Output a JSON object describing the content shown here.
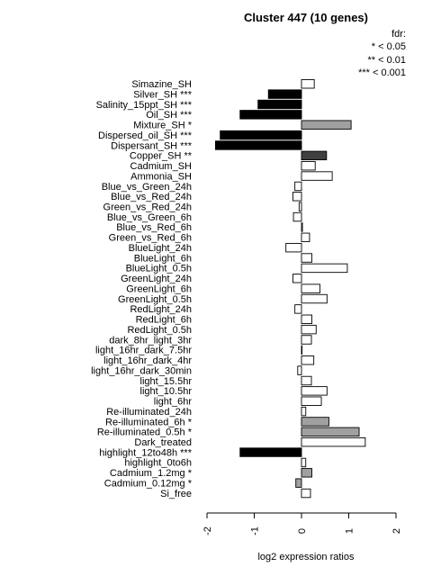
{
  "chart_data": {
    "type": "bar",
    "orientation": "horizontal",
    "title": "Cluster 447 (10 genes)",
    "xlabel": "log2 expression ratios",
    "ylabel": "",
    "xlim": [
      -2,
      2
    ],
    "xticks": [
      -2,
      -1,
      0,
      1,
      2
    ],
    "xtick_labels": [
      "-2",
      "-1",
      "0",
      "1",
      "2"
    ],
    "legend_entries": [
      "fdr:",
      "* < 0.05",
      "** < 0.01",
      "*** < 0.001"
    ],
    "colors": {
      "p001": "#000000",
      "p01": "#404040",
      "p05": "#a0a0a0",
      "ns": "#ffffff",
      "stroke": "#000000"
    },
    "bars": [
      {
        "label": "Simazine_SH",
        "value": 0.27,
        "sig": ""
      },
      {
        "label": "Silver_SH ***",
        "value": -0.7,
        "sig": "***"
      },
      {
        "label": "Salinity_15ppt_SH ***",
        "value": -0.92,
        "sig": "***"
      },
      {
        "label": "Oil_SH ***",
        "value": -1.3,
        "sig": "***"
      },
      {
        "label": "Mixture_SH *",
        "value": 1.05,
        "sig": "*"
      },
      {
        "label": "Dispersed_oil_SH ***",
        "value": -1.72,
        "sig": "***"
      },
      {
        "label": "Dispersant_SH ***",
        "value": -1.82,
        "sig": "***"
      },
      {
        "label": "Copper_SH **",
        "value": 0.53,
        "sig": "**"
      },
      {
        "label": "Cadmium_SH",
        "value": 0.29,
        "sig": ""
      },
      {
        "label": "Ammonia_SH",
        "value": 0.65,
        "sig": ""
      },
      {
        "label": "Blue_vs_Green_24h",
        "value": -0.14,
        "sig": ""
      },
      {
        "label": "Blue_vs_Red_24h",
        "value": -0.18,
        "sig": ""
      },
      {
        "label": "Green_vs_Red_24h",
        "value": -0.05,
        "sig": ""
      },
      {
        "label": "Blue_vs_Green_6h",
        "value": -0.17,
        "sig": ""
      },
      {
        "label": "Blue_vs_Red_6h",
        "value": 0.02,
        "sig": ""
      },
      {
        "label": "Green_vs_Red_6h",
        "value": 0.17,
        "sig": ""
      },
      {
        "label": "BlueLight_24h",
        "value": -0.33,
        "sig": ""
      },
      {
        "label": "BlueLight_6h",
        "value": 0.22,
        "sig": ""
      },
      {
        "label": "BlueLight_0.5h",
        "value": 0.97,
        "sig": ""
      },
      {
        "label": "GreenLight_24h",
        "value": -0.18,
        "sig": ""
      },
      {
        "label": "GreenLight_6h",
        "value": 0.39,
        "sig": ""
      },
      {
        "label": "GreenLight_0.5h",
        "value": 0.54,
        "sig": ""
      },
      {
        "label": "RedLight_24h",
        "value": -0.14,
        "sig": ""
      },
      {
        "label": "RedLight_6h",
        "value": 0.22,
        "sig": ""
      },
      {
        "label": "RedLight_0.5h",
        "value": 0.31,
        "sig": ""
      },
      {
        "label": "dark_8hr_light_3hr",
        "value": 0.21,
        "sig": ""
      },
      {
        "label": "light_16hr_dark_7.5hr",
        "value": 0.01,
        "sig": ""
      },
      {
        "label": "light_16hr_dark_4hr",
        "value": 0.26,
        "sig": ""
      },
      {
        "label": "light_16hr_dark_30min",
        "value": -0.08,
        "sig": ""
      },
      {
        "label": "light_15.5hr",
        "value": 0.21,
        "sig": ""
      },
      {
        "label": "light_10.5hr",
        "value": 0.54,
        "sig": ""
      },
      {
        "label": "light_6hr",
        "value": 0.42,
        "sig": ""
      },
      {
        "label": "Re-illuminated_24h",
        "value": 0.09,
        "sig": ""
      },
      {
        "label": "Re-illuminated_6h *",
        "value": 0.58,
        "sig": "*"
      },
      {
        "label": "Re-illuminated_0.5h *",
        "value": 1.22,
        "sig": "*"
      },
      {
        "label": "Dark_treated",
        "value": 1.35,
        "sig": ""
      },
      {
        "label": "highlight_12to48h ***",
        "value": -1.3,
        "sig": "***"
      },
      {
        "label": "highlight_0to6h",
        "value": 0.09,
        "sig": ""
      },
      {
        "label": "Cadmium_1.2mg *",
        "value": 0.22,
        "sig": "*"
      },
      {
        "label": "Cadmium_0.12mg *",
        "value": -0.12,
        "sig": "*"
      },
      {
        "label": "Si_free",
        "value": 0.19,
        "sig": ""
      }
    ]
  }
}
